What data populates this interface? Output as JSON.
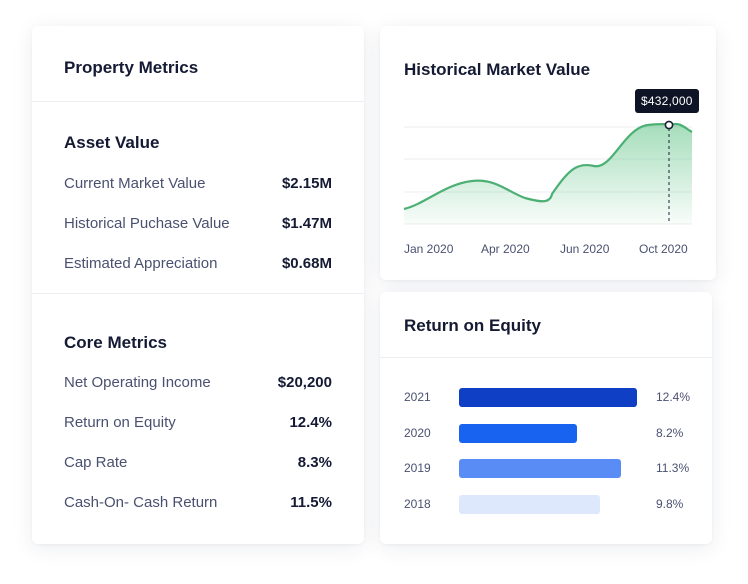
{
  "property_metrics": {
    "title": "Property Metrics",
    "asset_value": {
      "title": "Asset Value",
      "rows": [
        {
          "label": "Current Market Value",
          "value": "$2.15M"
        },
        {
          "label": "Historical Puchase Value",
          "value": "$1.47M"
        },
        {
          "label": "Estimated Appreciation",
          "value": "$0.68M"
        }
      ]
    },
    "core_metrics": {
      "title": "Core Metrics",
      "rows": [
        {
          "label": "Net Operating Income",
          "value": "$20,200"
        },
        {
          "label": "Return on Equity",
          "value": "12.4%"
        },
        {
          "label": "Cap Rate",
          "value": "8.3%"
        },
        {
          "label": "Cash-On- Cash Return",
          "value": "11.5%"
        }
      ]
    }
  },
  "historical_market_value": {
    "title": "Historical Market Value",
    "tooltip": "$432,000",
    "x_labels": [
      "Jan 2020",
      "Apr 2020",
      "Jun 2020",
      "Oct 2020"
    ],
    "line_color": "#4caf74",
    "fill_color": "#5cc283"
  },
  "return_on_equity": {
    "title": "Return on Equity",
    "bars": [
      {
        "year": "2021",
        "label": "12.4%",
        "value": 12.4,
        "color": "#0f3fc4"
      },
      {
        "year": "2020",
        "label": "8.2%",
        "value": 8.2,
        "color": "#1863f0"
      },
      {
        "year": "2019",
        "label": "11.3%",
        "value": 11.3,
        "color": "#5a8cf6"
      },
      {
        "year": "2018",
        "label": "9.8%",
        "value": 9.8,
        "color": "#dde8fd"
      }
    ]
  }
}
